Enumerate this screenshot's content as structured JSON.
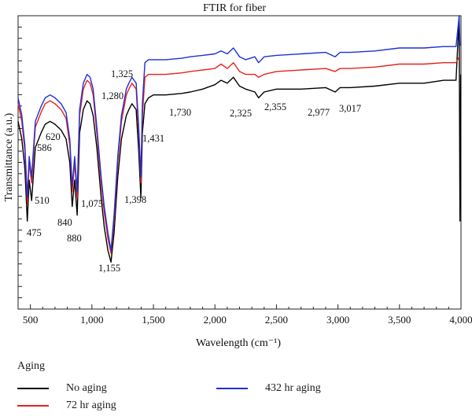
{
  "chart_data": {
    "type": "line",
    "title": "FTIR for fiber",
    "xlabel": "Wavelength (cm⁻¹)",
    "ylabel": "Transmittance (a.u.)",
    "xlim": [
      400,
      4000
    ],
    "ylim": [
      0,
      1
    ],
    "x_ticks": [
      500,
      1000,
      1500,
      2000,
      2500,
      3000,
      3500,
      4000
    ],
    "x_tick_labels": [
      "500",
      "1,000",
      "1,500",
      "2,000",
      "2,500",
      "3,000",
      "3,500",
      "4,000"
    ],
    "y_tick_labels_shown": false,
    "grid": false,
    "legend": {
      "title": "Aging",
      "position": "bottom",
      "entries": [
        "No aging",
        "72 hr aging",
        "432 hr aging"
      ]
    },
    "series": [
      {
        "name": "No aging",
        "color": "#000000",
        "x": [
          400,
          430,
          455,
          475,
          490,
          510,
          540,
          586,
          620,
          660,
          700,
          750,
          790,
          820,
          840,
          860,
          880,
          900,
          930,
          960,
          985,
          1010,
          1040,
          1075,
          1100,
          1130,
          1155,
          1180,
          1210,
          1240,
          1280,
          1300,
          1325,
          1360,
          1380,
          1398,
          1410,
          1431,
          1460,
          1500,
          1600,
          1730,
          1800,
          1900,
          2000,
          2050,
          2100,
          2150,
          2200,
          2250,
          2325,
          2355,
          2400,
          2500,
          2700,
          2900,
          2977,
          3017,
          3100,
          3300,
          3500,
          3700,
          3860,
          3960,
          3985,
          3992,
          3998
        ],
        "y": [
          0.64,
          0.58,
          0.48,
          0.3,
          0.44,
          0.37,
          0.55,
          0.6,
          0.63,
          0.64,
          0.63,
          0.61,
          0.58,
          0.5,
          0.35,
          0.44,
          0.32,
          0.6,
          0.68,
          0.71,
          0.7,
          0.66,
          0.55,
          0.38,
          0.28,
          0.2,
          0.16,
          0.26,
          0.45,
          0.58,
          0.66,
          0.68,
          0.7,
          0.68,
          0.54,
          0.38,
          0.6,
          0.7,
          0.72,
          0.73,
          0.73,
          0.735,
          0.74,
          0.75,
          0.765,
          0.78,
          0.77,
          0.79,
          0.76,
          0.75,
          0.74,
          0.72,
          0.74,
          0.75,
          0.75,
          0.755,
          0.74,
          0.755,
          0.755,
          0.76,
          0.77,
          0.77,
          0.78,
          0.78,
          1.0,
          0.3,
          0.8
        ]
      },
      {
        "name": "72 hr aging",
        "color": "#e8211d",
        "x": [
          400,
          430,
          455,
          475,
          490,
          510,
          540,
          586,
          620,
          660,
          700,
          750,
          790,
          820,
          840,
          860,
          880,
          900,
          930,
          960,
          985,
          1010,
          1040,
          1075,
          1100,
          1130,
          1155,
          1180,
          1210,
          1240,
          1280,
          1300,
          1325,
          1360,
          1380,
          1398,
          1410,
          1431,
          1460,
          1500,
          1600,
          1730,
          1800,
          1900,
          2000,
          2050,
          2100,
          2150,
          2200,
          2250,
          2325,
          2355,
          2400,
          2500,
          2700,
          2900,
          2977,
          3017,
          3100,
          3300,
          3500,
          3700,
          3860,
          3960,
          3985
        ],
        "y": [
          0.7,
          0.64,
          0.54,
          0.36,
          0.5,
          0.43,
          0.62,
          0.67,
          0.7,
          0.71,
          0.7,
          0.68,
          0.65,
          0.56,
          0.4,
          0.5,
          0.38,
          0.66,
          0.75,
          0.78,
          0.77,
          0.73,
          0.6,
          0.43,
          0.33,
          0.24,
          0.19,
          0.3,
          0.5,
          0.64,
          0.73,
          0.75,
          0.77,
          0.75,
          0.6,
          0.43,
          0.66,
          0.79,
          0.8,
          0.8,
          0.8,
          0.805,
          0.81,
          0.815,
          0.82,
          0.835,
          0.82,
          0.84,
          0.81,
          0.8,
          0.8,
          0.79,
          0.8,
          0.81,
          0.815,
          0.82,
          0.81,
          0.82,
          0.82,
          0.825,
          0.835,
          0.835,
          0.84,
          0.84,
          0.86
        ]
      },
      {
        "name": "432 hr aging",
        "color": "#1f2fd6",
        "x": [
          400,
          430,
          455,
          475,
          490,
          510,
          540,
          586,
          620,
          660,
          700,
          750,
          790,
          820,
          840,
          860,
          880,
          900,
          930,
          960,
          985,
          1010,
          1040,
          1075,
          1100,
          1130,
          1155,
          1180,
          1210,
          1240,
          1280,
          1300,
          1325,
          1360,
          1380,
          1398,
          1410,
          1431,
          1460,
          1500,
          1600,
          1730,
          1800,
          1900,
          2000,
          2050,
          2100,
          2150,
          2200,
          2250,
          2325,
          2355,
          2400,
          2500,
          2700,
          2900,
          2977,
          3017,
          3100,
          3300,
          3500,
          3700,
          3860,
          3960,
          3985,
          3992,
          3998
        ],
        "y": [
          0.72,
          0.66,
          0.56,
          0.38,
          0.52,
          0.45,
          0.64,
          0.69,
          0.72,
          0.73,
          0.72,
          0.7,
          0.67,
          0.58,
          0.42,
          0.52,
          0.4,
          0.68,
          0.77,
          0.8,
          0.79,
          0.75,
          0.62,
          0.45,
          0.35,
          0.26,
          0.2,
          0.32,
          0.52,
          0.66,
          0.75,
          0.77,
          0.79,
          0.77,
          0.62,
          0.45,
          0.7,
          0.84,
          0.85,
          0.85,
          0.85,
          0.855,
          0.86,
          0.865,
          0.87,
          0.88,
          0.87,
          0.89,
          0.86,
          0.85,
          0.86,
          0.84,
          0.86,
          0.865,
          0.87,
          0.875,
          0.86,
          0.875,
          0.875,
          0.88,
          0.89,
          0.89,
          0.895,
          0.895,
          1.0,
          0.9,
          0.9
        ]
      }
    ],
    "annotations": [
      {
        "text": "475",
        "x": 475
      },
      {
        "text": "510",
        "x": 510
      },
      {
        "text": "586",
        "x": 586
      },
      {
        "text": "620",
        "x": 620
      },
      {
        "text": "840",
        "x": 840
      },
      {
        "text": "880",
        "x": 880
      },
      {
        "text": "1,075",
        "x": 1075
      },
      {
        "text": "1,155",
        "x": 1155
      },
      {
        "text": "1,280",
        "x": 1280
      },
      {
        "text": "1,325",
        "x": 1325
      },
      {
        "text": "1,398",
        "x": 1398
      },
      {
        "text": "1,431",
        "x": 1431
      },
      {
        "text": "1,730",
        "x": 1730
      },
      {
        "text": "2,325",
        "x": 2325
      },
      {
        "text": "2,355",
        "x": 2355
      },
      {
        "text": "2,977",
        "x": 2977
      },
      {
        "text": "3,017",
        "x": 3017
      }
    ]
  }
}
